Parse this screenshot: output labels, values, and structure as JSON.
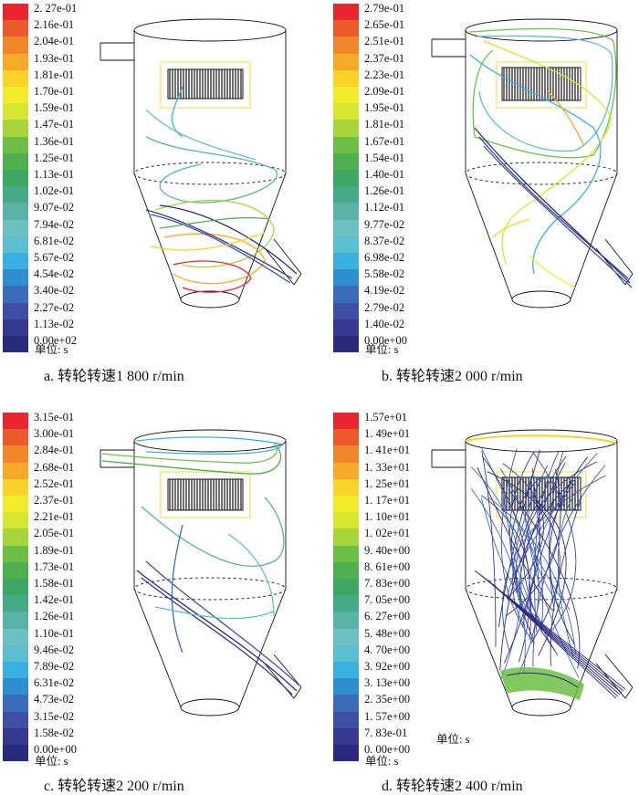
{
  "figure": {
    "panels": [
      {
        "id": "a",
        "caption": "a. 转轮转速1 800 r/min",
        "unit_label": "单位: s",
        "colorbar_ticks": [
          "2. 27e-01",
          "2.16e-01",
          "2.04e-01",
          "1.93e-01",
          "1.81e-01",
          "1.70e-01",
          "1.59e-01",
          "1.47e-01",
          "1.36e-01",
          "1.25e-01",
          "1.13e-01",
          "1.02e-01",
          "9.07e-02",
          "7.94e-02",
          "6.81e-02",
          "5.67e-02",
          "4.54e-02",
          "3.40e-02",
          "2.27e-02",
          "1.13e-02",
          "0.00e+02"
        ]
      },
      {
        "id": "b",
        "caption": "b. 转轮转速2 000 r/min",
        "unit_label": "单位: s",
        "colorbar_ticks": [
          "2.79e-01",
          "2.65e-01",
          "2.51e-01",
          "2.37e-01",
          "2.23e-01",
          "2.09e-01",
          "1.95e-01",
          "1.81e-01",
          "1.67e-01",
          "1.54e-01",
          "1.40e-01",
          "1.26e-01",
          "1.12e-01",
          "9.77e-02",
          "8.37e-02",
          "6.98e-02",
          "5.58e-02",
          "4.19e-02",
          "2.79e-02",
          "1.40e-02",
          "0.00e+00"
        ]
      },
      {
        "id": "c",
        "caption": "c. 转轮转速2 200 r/min",
        "unit_label": "单位: s",
        "colorbar_ticks": [
          "3.15e-01",
          "3.00e-01",
          "2.84e-01",
          "2.68e-01",
          "2.52e-01",
          "2.37e-01",
          "2.21e-01",
          "2.05e-01",
          "1.89e-01",
          "1.73e-01",
          "1.58e-01",
          "1.42e-01",
          "1.26e-01",
          "1.10e-01",
          "9.46e-02",
          "7.89e-02",
          "6.31e-02",
          "4.73e-02",
          "3.15e-02",
          "1.58e-02",
          "0.00e+00"
        ]
      },
      {
        "id": "d",
        "caption": "d. 转轮转速2 400 r/min",
        "unit_label": "单位: s",
        "colorbar_ticks": [
          "1.57e+01",
          "1. 49e+01",
          "1. 41e+01",
          "1. 33e+01",
          "1. 25e+01",
          "1. 17e+01",
          "1. 10e+01",
          "1. 02e+01",
          "9. 40e+00",
          "8. 61e+00",
          "7. 83e+00",
          "7. 05e+00",
          "6. 27e+00",
          "5. 48e+00",
          "4. 70e+00",
          "3. 92e+00",
          "3. 13e+00",
          "2. 35e+00",
          "1. 57e+00",
          "7. 83e-01",
          "0. 00e+00"
        ]
      }
    ],
    "colormap": [
      "#e8262d",
      "#ec5a2b",
      "#f2862a",
      "#f6aa28",
      "#fbd228",
      "#f2ec2a",
      "#d6e62e",
      "#a7d63a",
      "#6dbf45",
      "#4faf4c",
      "#3fa763",
      "#45ab86",
      "#58b3a4",
      "#6ebfbf",
      "#5bbfd0",
      "#38b0e0",
      "#2e8fd0",
      "#3a6cba",
      "#3e4fa6",
      "#36398f",
      "#2a2a7e"
    ]
  }
}
